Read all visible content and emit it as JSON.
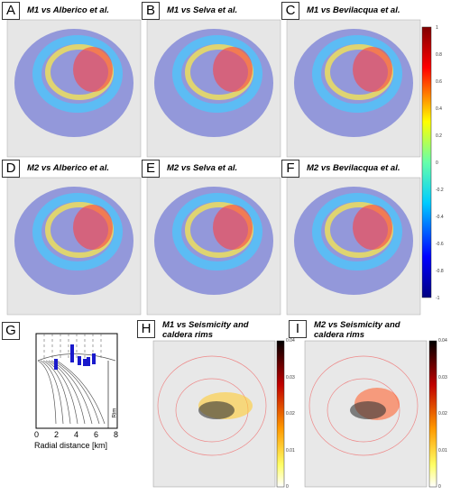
{
  "panels": [
    {
      "letter": "A",
      "title": "M1 vs Alberico et al."
    },
    {
      "letter": "B",
      "title": "M1 vs Selva et al."
    },
    {
      "letter": "C",
      "title": "M1 vs Bevilacqua et al."
    },
    {
      "letter": "D",
      "title": "M2 vs Alberico et al."
    },
    {
      "letter": "E",
      "title": "M2 vs Selva et al."
    },
    {
      "letter": "F",
      "title": "M2 vs Bevilacqua et al."
    }
  ],
  "colorbar": {
    "ticks": [
      1,
      0.8,
      0.6,
      0.4,
      0.2,
      0,
      -0.2,
      -0.4,
      -0.6,
      -0.8,
      -1
    ]
  },
  "panel_g": {
    "letter": "G",
    "xlabel": "Radial distance [km]",
    "xticks": [
      0,
      2,
      4,
      6,
      8
    ],
    "rim_label": "Rim"
  },
  "panel_h": {
    "letter": "H",
    "title": "M1 vs Seismicity and caldera rims",
    "colorbar_ticks": [
      0.04,
      0.03,
      0.02,
      0.01,
      0
    ]
  },
  "panel_i": {
    "letter": "I",
    "title": "M2 vs Seismicity and caldera rims",
    "colorbar_ticks": [
      0.04,
      0.03,
      0.02,
      0.01,
      0
    ]
  }
}
